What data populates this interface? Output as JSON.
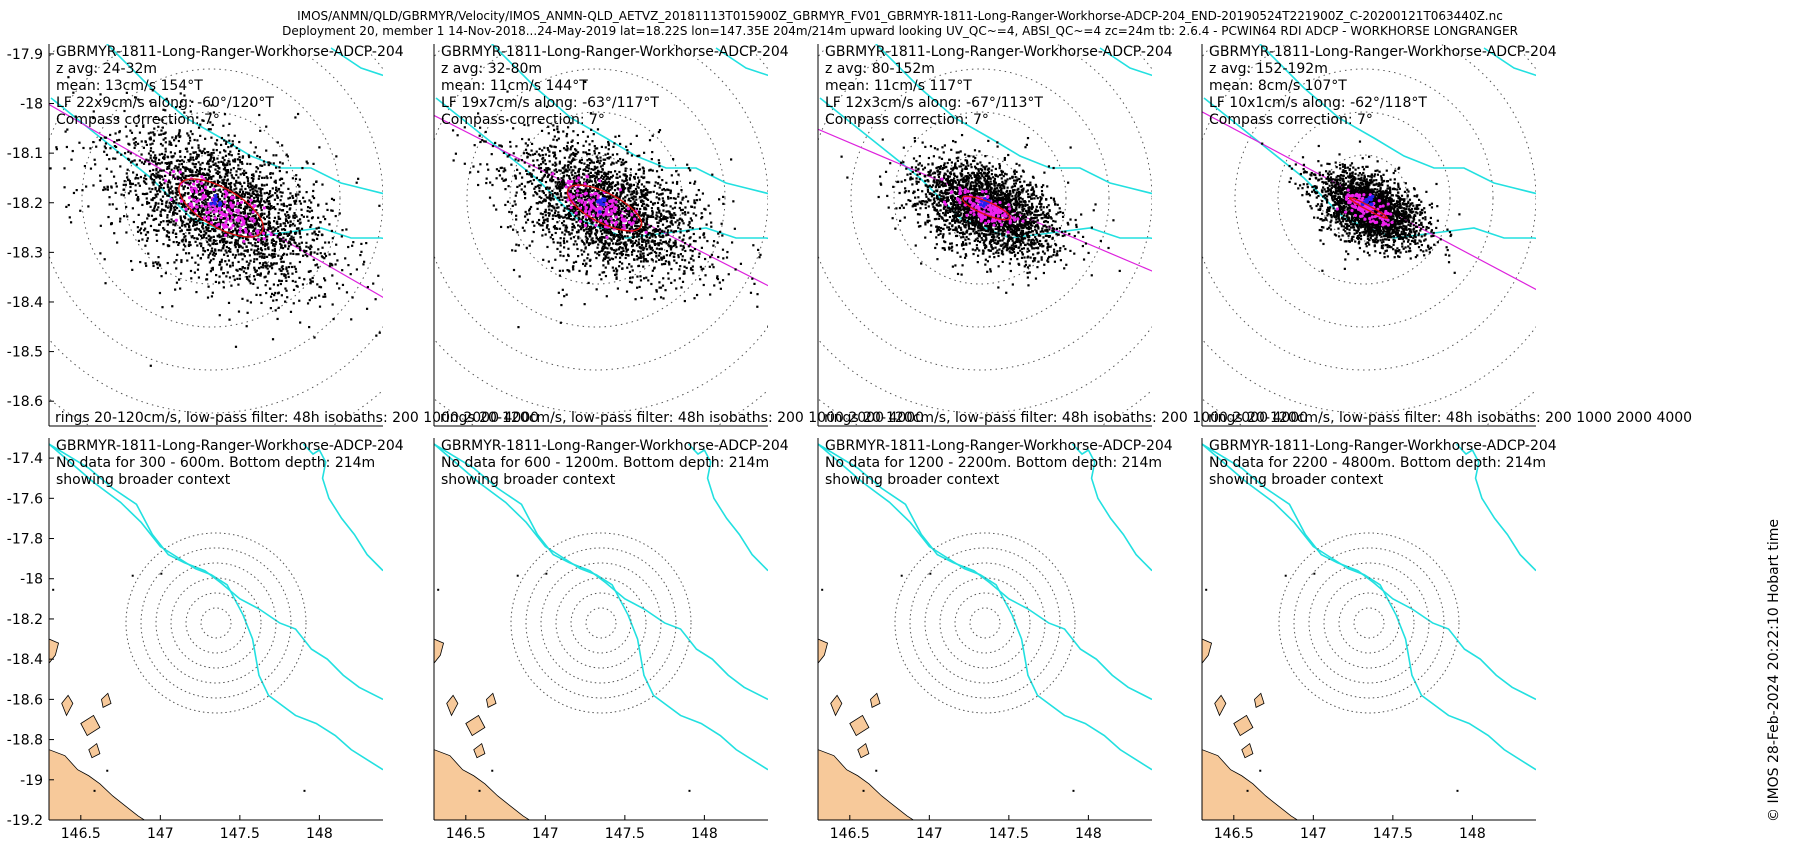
{
  "header": {
    "line1": "IMOS/ANMN/QLD/GBRMYR/Velocity/IMOS_ANMN-QLD_AETVZ_20181113T015900Z_GBRMYR_FV01_GBRMYR-1811-Long-Ranger-Workhorse-ADCP-204_END-20190524T221900Z_C-20200121T063440Z.nc",
    "line2": "Deployment 20, member 1 14-Nov-2018...24-May-2019 lat=18.22S lon=147.35E 204m/214m upward looking UV_QC~=4, ABSI_QC~=4 zc=24m tb: 2.6.4 - PCWIN64 RDI ADCP - WORKHORSE LONGRANGER"
  },
  "credit": "© IMOS 28-Feb-2024 20:22:10 Hobart time",
  "colors": {
    "isobath": "#22e0e0",
    "major_axis": "#dd22dd",
    "ellipse": "#dd1111",
    "scatter": "#000000",
    "lowpass": "#ee22ee",
    "mean": "#2222ee",
    "land": "#f7c99a",
    "rings": "#555555"
  },
  "chart_data": [
    {
      "type": "scatter",
      "row": "top",
      "instrument": "GBRMYR-1811-Long-Ranger-Workhorse-ADCP-204",
      "lines": [
        "GBRMYR-1811-Long-Ranger-Workhorse-ADCP-204",
        "z avg: 24-32m",
        "mean: 13cm/s 154°T",
        "LF 22x9cm/s along: -60°/120°T",
        "Compass correction: 7°"
      ],
      "footer": "rings 20-120cm/s, low-pass filter: 48h isobaths: 200 1000 2000 4000",
      "z_avg": "24-32m",
      "mean_speed_cms": 13,
      "mean_dir_degT": 154,
      "lf_major_cms": 22,
      "lf_minor_cms": 9,
      "along_deg": [
        -60,
        120
      ],
      "compass_correction_deg": 7,
      "spread": 1.0,
      "ylim": [
        -18.65,
        -17.88
      ],
      "yticks": [
        -17.9,
        -18,
        -18.1,
        -18.2,
        -18.3,
        -18.4,
        -18.5,
        -18.6
      ],
      "ytick_labels": [
        "-17.9",
        "-18",
        "-18.1",
        "-18.2",
        "-18.3",
        "-18.4",
        "-18.5",
        "-18.6"
      ]
    },
    {
      "type": "scatter",
      "row": "top",
      "instrument": "GBRMYR-1811-Long-Ranger-Workhorse-ADCP-204",
      "lines": [
        "GBRMYR-1811-Long-Ranger-Workhorse-ADCP-204",
        "z avg: 32-80m",
        "mean: 11cm/s 144°T",
        "LF 19x7cm/s along: -63°/117°T",
        "Compass correction: 7°"
      ],
      "footer": "rings 20-120cm/s, low-pass filter: 48h isobaths: 200 1000 2000 4000",
      "z_avg": "32-80m",
      "mean_speed_cms": 11,
      "mean_dir_degT": 144,
      "lf_major_cms": 19,
      "lf_minor_cms": 7,
      "along_deg": [
        -63,
        117
      ],
      "compass_correction_deg": 7,
      "spread": 0.85
    },
    {
      "type": "scatter",
      "row": "top",
      "instrument": "GBRMYR-1811-Long-Ranger-Workhorse-ADCP-204",
      "lines": [
        "GBRMYR-1811-Long-Ranger-Workhorse-ADCP-204",
        "z avg: 80-152m",
        "mean: 11cm/s 117°T",
        "LF 12x3cm/s along: -67°/113°T",
        "Compass correction: 7°"
      ],
      "footer": "rings 20-120cm/s, low-pass filter: 48h isobaths: 200 1000 2000 4000",
      "z_avg": "80-152m",
      "mean_speed_cms": 11,
      "mean_dir_degT": 117,
      "lf_major_cms": 12,
      "lf_minor_cms": 3,
      "along_deg": [
        -67,
        113
      ],
      "compass_correction_deg": 7,
      "spread": 0.62
    },
    {
      "type": "scatter",
      "row": "top",
      "instrument": "GBRMYR-1811-Long-Ranger-Workhorse-ADCP-204",
      "lines": [
        "GBRMYR-1811-Long-Ranger-Workhorse-ADCP-204",
        "z avg: 152-192m",
        "mean: 8cm/s 107°T",
        "LF 10x1cm/s along: -62°/118°T",
        "Compass correction: 7°"
      ],
      "footer": "rings 20-120cm/s, low-pass filter: 48h isobaths: 200 1000 2000 4000",
      "z_avg": "152-192m",
      "mean_speed_cms": 8,
      "mean_dir_degT": 107,
      "lf_major_cms": 10,
      "lf_minor_cms": 1,
      "along_deg": [
        -62,
        118
      ],
      "compass_correction_deg": 7,
      "spread": 0.45
    },
    {
      "type": "map",
      "row": "bottom",
      "lines": [
        "GBRMYR-1811-Long-Ranger-Workhorse-ADCP-204",
        "No data for 300 - 600m. Bottom depth: 214m",
        "showing broader context"
      ],
      "xlim": [
        146.3,
        148.4
      ],
      "ylim": [
        -19.2,
        -17.3
      ],
      "xticks": [
        146.5,
        147,
        147.5,
        148
      ],
      "xtick_labels": [
        "146.5",
        "147",
        "147.5",
        "148"
      ],
      "yticks": [
        -17.4,
        -17.6,
        -17.8,
        -18,
        -18.2,
        -18.4,
        -18.6,
        -18.8,
        -19,
        -19.2
      ],
      "ytick_labels": [
        "-17.4",
        "-17.6",
        "-17.8",
        "-18",
        "-18.2",
        "-18.4",
        "-18.6",
        "-18.8",
        "-19",
        "-19.2"
      ]
    },
    {
      "type": "map",
      "row": "bottom",
      "lines": [
        "GBRMYR-1811-Long-Ranger-Workhorse-ADCP-204",
        "No data for 600 - 1200m. Bottom depth: 214m",
        "showing broader context"
      ],
      "xtick_labels": [
        "146.5",
        "147",
        "147.5",
        "148"
      ]
    },
    {
      "type": "map",
      "row": "bottom",
      "lines": [
        "GBRMYR-1811-Long-Ranger-Workhorse-ADCP-204",
        "No data for 1200 - 2200m. Bottom depth: 214m",
        "showing broader context"
      ],
      "xtick_labels": [
        "146.5",
        "147",
        "147.5",
        "148"
      ]
    },
    {
      "type": "map",
      "row": "bottom",
      "lines": [
        "GBRMYR-1811-Long-Ranger-Workhorse-ADCP-204",
        "No data for 2200 - 4800m. Bottom depth: 214m",
        "showing broader context"
      ],
      "xtick_labels": [
        "146.5",
        "147",
        "147.5",
        "148"
      ]
    }
  ]
}
